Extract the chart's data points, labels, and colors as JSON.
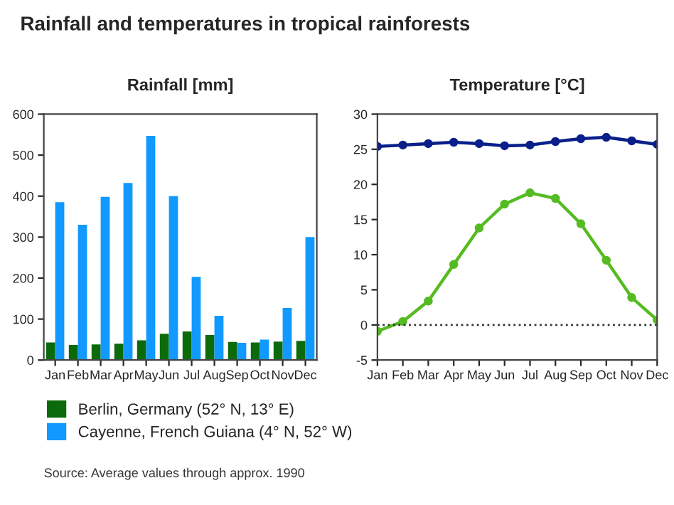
{
  "chart_data": [
    {
      "type": "bar",
      "title": "Rainfall and temperatures in tropical rainforests",
      "subtitle": "Rainfall [mm]",
      "categories": [
        "Jan",
        "Feb",
        "Mar",
        "Apr",
        "May",
        "Jun",
        "Jul",
        "Aug",
        "Sep",
        "Oct",
        "Nov",
        "Dec"
      ],
      "series": [
        {
          "name": "Berlin, Germany (52° N, 13° E)",
          "color": "#0b6b0b",
          "values": [
            43,
            37,
            38,
            40,
            48,
            64,
            70,
            61,
            44,
            43,
            45,
            47
          ]
        },
        {
          "name": "Cayenne, French Guiana (4° N, 52° W)",
          "color": "#1199ff",
          "values": [
            385,
            330,
            398,
            432,
            547,
            400,
            203,
            108,
            42,
            50,
            127,
            300
          ]
        }
      ],
      "ylim": [
        0,
        600
      ],
      "yticks": [
        0,
        100,
        200,
        300,
        400,
        500,
        600
      ],
      "grid": false,
      "legend": "bottom",
      "annotations": [
        "Source: Average values through approx. 1990"
      ]
    },
    {
      "type": "line",
      "title": "Temperature [°C]",
      "categories": [
        "Jan",
        "Feb",
        "Mar",
        "Apr",
        "May",
        "Jun",
        "Jul",
        "Aug",
        "Sep",
        "Oct",
        "Nov",
        "Dec"
      ],
      "series": [
        {
          "color": "#0a1f8a",
          "values": [
            25.4,
            25.6,
            25.8,
            26.0,
            25.8,
            25.5,
            25.6,
            26.1,
            26.5,
            26.7,
            26.2,
            25.7
          ]
        },
        {
          "color": "#55bb22",
          "values": [
            -0.9,
            0.5,
            3.4,
            8.6,
            13.8,
            17.2,
            18.8,
            18.0,
            14.4,
            9.2,
            3.9,
            0.7
          ]
        }
      ],
      "ylim": [
        -5,
        30
      ],
      "yticks": [
        -5,
        0,
        5,
        10,
        15,
        20,
        25,
        30
      ],
      "grid": false,
      "marker": "circle",
      "ref_lines": [
        {
          "axis": "y",
          "value": 0,
          "color": "#333333",
          "line_style": "dotted"
        }
      ]
    }
  ]
}
